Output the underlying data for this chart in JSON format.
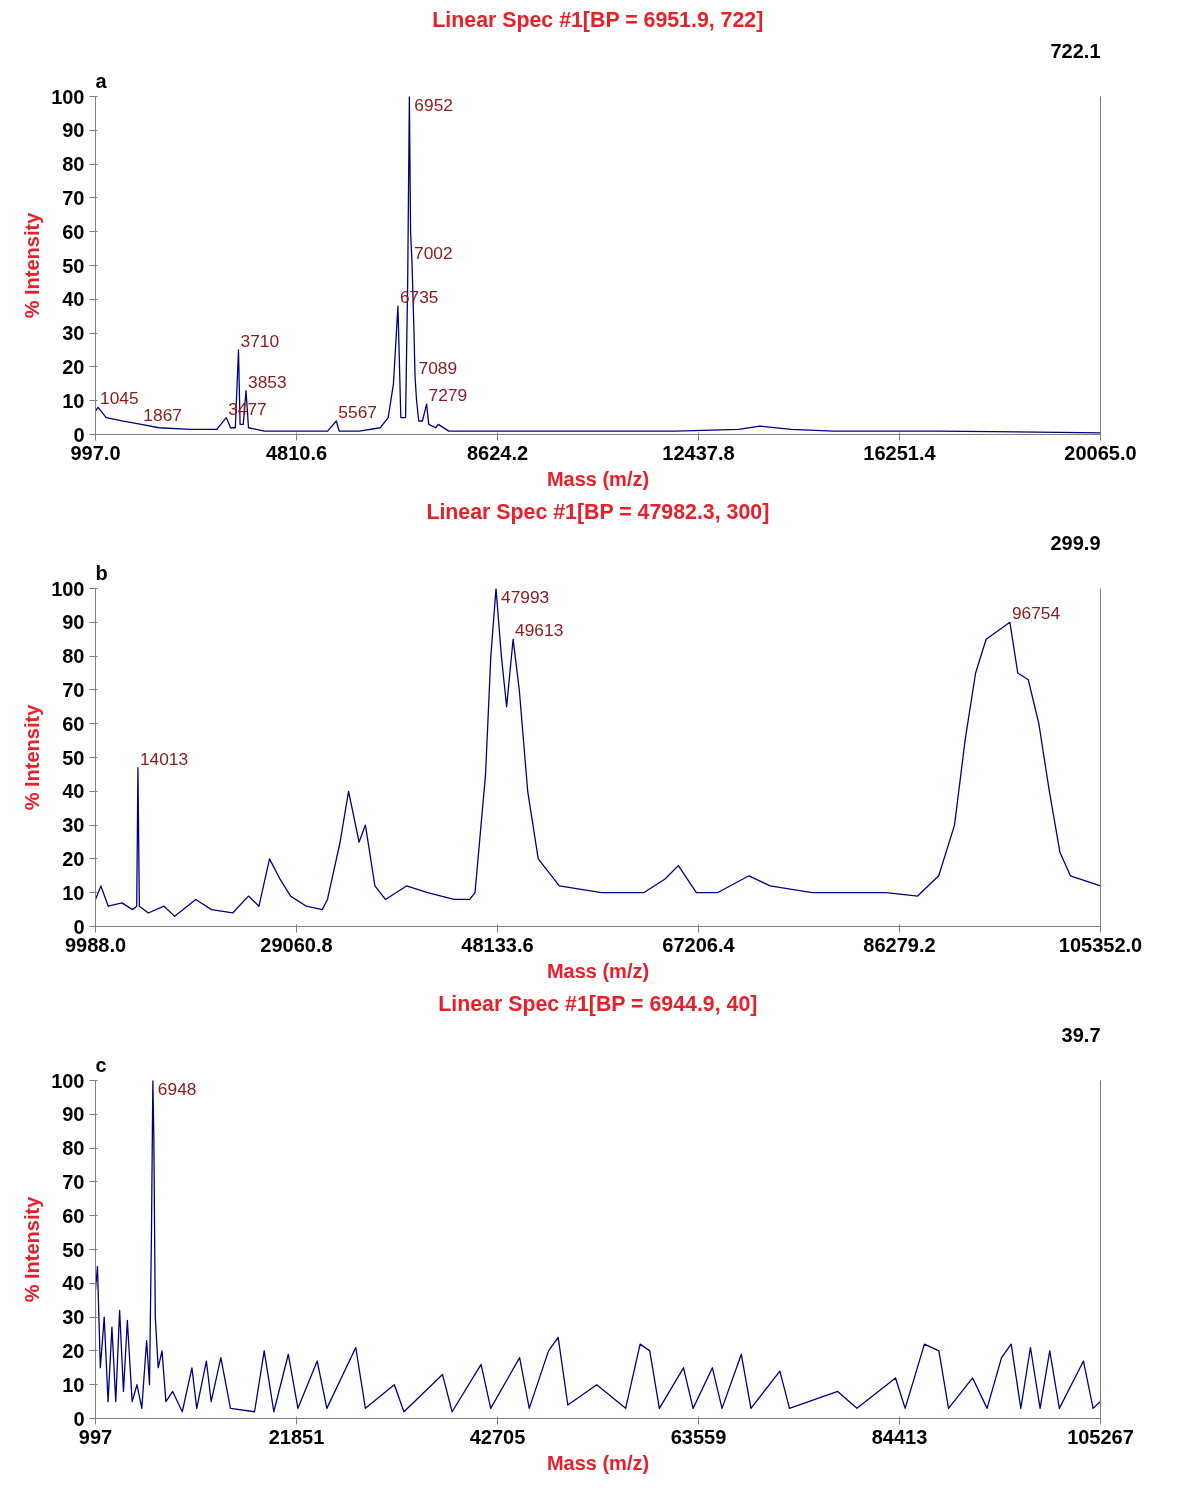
{
  "chart_data": [
    {
      "type": "line",
      "title": "Linear Spec #1[BP = 6951.9, 722]",
      "xlabel": "Mass (m/z)",
      "ylabel": "% Intensity",
      "annotations": [
        "a",
        "722.1",
        {
          "text": "1045",
          "x": 1045,
          "y": 8
        },
        {
          "text": "1867",
          "x": 1867,
          "y": 3
        },
        {
          "text": "3477",
          "x": 3477,
          "y": 5
        },
        {
          "text": "3710",
          "x": 3710,
          "y": 25
        },
        {
          "text": "3853",
          "x": 3853,
          "y": 13
        },
        {
          "text": "5567",
          "x": 5567,
          "y": 4
        },
        {
          "text": "6735",
          "x": 6735,
          "y": 38
        },
        {
          "text": "6952",
          "x": 6952,
          "y": 100
        },
        {
          "text": "7002",
          "x": 7002,
          "y": 51
        },
        {
          "text": "7089",
          "x": 7089,
          "y": 17
        },
        {
          "text": "7279",
          "x": 7279,
          "y": 9
        }
      ],
      "xlim": [
        997,
        20065
      ],
      "xticks": [
        {
          "value": 997,
          "label": "997.0"
        },
        {
          "value": 4810.6,
          "label": "4810.6"
        },
        {
          "value": 8624.2,
          "label": "8624.2"
        },
        {
          "value": 12437.8,
          "label": "12437.8"
        },
        {
          "value": 16251.4,
          "label": "16251.4"
        },
        {
          "value": 20065,
          "label": "20065.0"
        }
      ],
      "ylim": [
        0,
        100
      ],
      "yticks": [
        0,
        10,
        20,
        30,
        40,
        50,
        60,
        70,
        80,
        90,
        100
      ],
      "x": [
        997,
        1045,
        1200,
        1500,
        1867,
        2200,
        2800,
        3300,
        3477,
        3560,
        3650,
        3710,
        3740,
        3800,
        3853,
        3900,
        4200,
        4810,
        5400,
        5567,
        5620,
        6000,
        6400,
        6550,
        6650,
        6735,
        6790,
        6880,
        6920,
        6952,
        6975,
        7002,
        7040,
        7060,
        7089,
        7130,
        7200,
        7279,
        7320,
        7450,
        7500,
        7700,
        8624,
        10000,
        12000,
        13200,
        13600,
        14200,
        15000,
        17000,
        20065
      ],
      "series": [
        {
          "color": "#000080",
          "values": [
            7,
            8,
            5,
            4,
            3,
            2,
            1.5,
            1.5,
            5,
            2,
            2,
            25,
            3,
            3,
            13,
            2,
            1,
            1,
            1,
            4,
            1,
            1,
            2,
            5,
            15,
            38,
            5,
            5,
            45,
            100,
            60,
            51,
            30,
            17,
            10,
            4,
            4,
            9,
            3,
            2,
            3,
            1,
            1,
            1,
            1,
            1.5,
            2.5,
            1.5,
            1,
            1,
            0.5
          ]
        }
      ]
    },
    {
      "type": "line",
      "title": "Linear Spec #1[BP = 47982.3, 300]",
      "xlabel": "Mass (m/z)",
      "ylabel": "% Intensity",
      "annotations": [
        "b",
        "299.9",
        {
          "text": "14013",
          "x": 14013,
          "y": 47
        },
        {
          "text": "47993",
          "x": 47993,
          "y": 100
        },
        {
          "text": "49613",
          "x": 49613,
          "y": 85
        },
        {
          "text": "96754",
          "x": 96754,
          "y": 90
        }
      ],
      "xlim": [
        9988,
        105352
      ],
      "xticks": [
        {
          "value": 9988,
          "label": "9988.0"
        },
        {
          "value": 29060.8,
          "label": "29060.8"
        },
        {
          "value": 48133.6,
          "label": "48133.6"
        },
        {
          "value": 67206.4,
          "label": "67206.4"
        },
        {
          "value": 86279.2,
          "label": "86279.2"
        },
        {
          "value": 105352,
          "label": "105352.0"
        }
      ],
      "ylim": [
        0,
        100
      ],
      "yticks": [
        0,
        10,
        20,
        30,
        40,
        50,
        60,
        70,
        80,
        90,
        100
      ],
      "x": [
        9988,
        10500,
        11200,
        12500,
        13500,
        13900,
        14013,
        14150,
        15000,
        16500,
        17500,
        19500,
        21000,
        23000,
        24500,
        25500,
        26500,
        27500,
        28500,
        30000,
        31500,
        32000,
        33200,
        34000,
        35000,
        35600,
        36500,
        37500,
        39500,
        41500,
        44000,
        45500,
        46000,
        47000,
        47500,
        47993,
        48500,
        49000,
        49613,
        50200,
        51000,
        52000,
        54000,
        58000,
        62000,
        64000,
        65300,
        67000,
        69000,
        72000,
        74000,
        78000,
        85000,
        88000,
        90000,
        91500,
        92500,
        93500,
        94500,
        96754,
        97500,
        98500,
        99500,
        100500,
        101500,
        102500,
        105352
      ],
      "series": [
        {
          "color": "#000080",
          "values": [
            8,
            12,
            6,
            7,
            5,
            6,
            47,
            6,
            4,
            6,
            3,
            8,
            5,
            4,
            9,
            6,
            20,
            14,
            9,
            6,
            5,
            8,
            25,
            40,
            25,
            30,
            12,
            8,
            12,
            10,
            8,
            8,
            10,
            45,
            80,
            100,
            80,
            65,
            85,
            70,
            40,
            20,
            12,
            10,
            10,
            14,
            18,
            10,
            10,
            15,
            12,
            10,
            10,
            9,
            15,
            30,
            55,
            75,
            85,
            90,
            75,
            73,
            60,
            40,
            22,
            15,
            12
          ]
        }
      ]
    },
    {
      "type": "line",
      "title": "Linear Spec #1[BP = 6944.9, 40]",
      "xlabel": "Mass (m/z)",
      "ylabel": "% Intensity",
      "annotations": [
        "c",
        "39.7",
        {
          "text": "6948",
          "x": 6948,
          "y": 100
        }
      ],
      "xlim": [
        997,
        105267
      ],
      "xticks": [
        997,
        21851,
        42705,
        63559,
        84413,
        105267
      ],
      "ylim": [
        0,
        100
      ],
      "yticks": [
        0,
        10,
        20,
        30,
        40,
        50,
        60,
        70,
        80,
        90,
        100
      ],
      "x": [
        997,
        1200,
        1500,
        1900,
        2300,
        2700,
        3100,
        3500,
        3900,
        4300,
        4800,
        5300,
        5800,
        6300,
        6600,
        6800,
        6948,
        7050,
        7200,
        7500,
        7900,
        8300,
        9000,
        10000,
        11000,
        11500,
        12500,
        13000,
        14000,
        15000,
        17500,
        18500,
        19500,
        21000,
        22000,
        24000,
        25000,
        28000,
        29000,
        32000,
        33000,
        37000,
        38000,
        41000,
        42000,
        45000,
        46000,
        48000,
        49000,
        50000,
        53000,
        56000,
        57500,
        58500,
        59500,
        62000,
        63000,
        65000,
        66000,
        68000,
        69000,
        72000,
        73000,
        78000,
        80000,
        84000,
        85000,
        87000,
        88500,
        89500,
        92000,
        93500,
        95000,
        96000,
        97000,
        98000,
        99000,
        100000,
        101000,
        103500,
        104500,
        105267
      ],
      "series": [
        {
          "color": "#000080",
          "values": [
            38,
            45,
            15,
            30,
            5,
            27,
            5,
            32,
            8,
            29,
            5,
            10,
            3,
            23,
            10,
            54,
            100,
            83,
            30,
            15,
            20,
            5,
            8,
            2,
            15,
            3,
            17,
            5,
            18,
            3,
            2,
            20,
            2,
            19,
            3,
            17,
            3,
            21,
            3,
            10,
            2,
            13,
            2,
            16,
            3,
            18,
            3,
            20,
            24,
            4,
            10,
            3,
            22,
            20,
            3,
            15,
            3,
            15,
            3,
            19,
            3,
            14,
            3,
            8,
            3,
            12,
            3,
            22,
            20,
            3,
            12,
            3,
            18,
            22,
            3,
            21,
            3,
            20,
            3,
            17,
            3,
            5
          ]
        }
      ]
    }
  ]
}
